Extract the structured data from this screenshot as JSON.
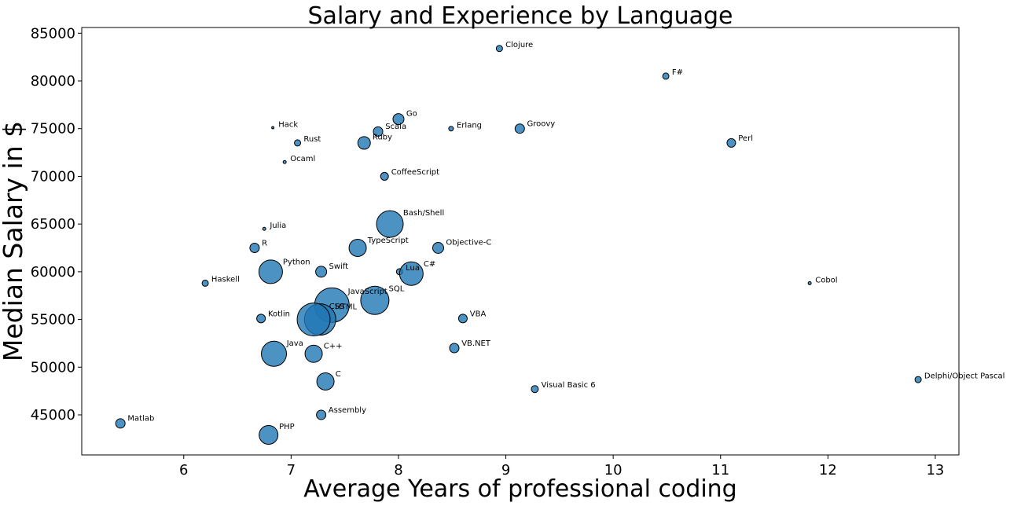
{
  "chart_data": {
    "type": "scatter",
    "title": "Salary and Experience by Language",
    "xlabel": "Average Years of professional coding",
    "ylabel": "Median Salary in  $",
    "xlim": [
      5.05,
      13.22
    ],
    "ylim": [
      40800,
      85600
    ],
    "xticks": [
      6,
      7,
      8,
      9,
      10,
      11,
      12,
      13
    ],
    "yticks": [
      45000,
      50000,
      55000,
      60000,
      65000,
      70000,
      75000,
      80000,
      85000
    ],
    "marker_color": "#1f77b4",
    "edge_color": "#000000",
    "grid": false,
    "legend": "none",
    "points": [
      {
        "label": "Clojure",
        "x": 8.94,
        "y": 83400,
        "size": 4
      },
      {
        "label": "F#",
        "x": 10.49,
        "y": 80500,
        "size": 4
      },
      {
        "label": "Go",
        "x": 8.0,
        "y": 76000,
        "size": 7
      },
      {
        "label": "Hack",
        "x": 6.83,
        "y": 75100,
        "size": 1.5
      },
      {
        "label": "Scala",
        "x": 7.81,
        "y": 74700,
        "size": 6
      },
      {
        "label": "Erlang",
        "x": 8.49,
        "y": 75000,
        "size": 3
      },
      {
        "label": "Groovy",
        "x": 9.13,
        "y": 75000,
        "size": 6
      },
      {
        "label": "Rust",
        "x": 7.06,
        "y": 73500,
        "size": 4
      },
      {
        "label": "Ruby",
        "x": 7.68,
        "y": 73500,
        "size": 8
      },
      {
        "label": "Perl",
        "x": 11.1,
        "y": 73500,
        "size": 5.5
      },
      {
        "label": "Ocaml",
        "x": 6.94,
        "y": 71500,
        "size": 2
      },
      {
        "label": "CoffeeScript",
        "x": 7.87,
        "y": 70000,
        "size": 5
      },
      {
        "label": "Bash/Shell",
        "x": 7.92,
        "y": 65000,
        "size": 17
      },
      {
        "label": "Julia",
        "x": 6.75,
        "y": 64500,
        "size": 2
      },
      {
        "label": "TypeScript",
        "x": 7.62,
        "y": 62500,
        "size": 11
      },
      {
        "label": "Objective-C",
        "x": 8.37,
        "y": 62500,
        "size": 7
      },
      {
        "label": "R",
        "x": 6.66,
        "y": 62500,
        "size": 6
      },
      {
        "label": "Python",
        "x": 6.81,
        "y": 60000,
        "size": 15
      },
      {
        "label": "Swift",
        "x": 7.28,
        "y": 60000,
        "size": 7
      },
      {
        "label": "Lua",
        "x": 8.01,
        "y": 60000,
        "size": 4
      },
      {
        "label": "C#",
        "x": 8.12,
        "y": 59800,
        "size": 15
      },
      {
        "label": "Haskell",
        "x": 6.2,
        "y": 58800,
        "size": 4
      },
      {
        "label": "Cobol",
        "x": 11.83,
        "y": 58800,
        "size": 2
      },
      {
        "label": "JavaScript",
        "x": 7.38,
        "y": 56500,
        "size": 22
      },
      {
        "label": "SQL",
        "x": 7.78,
        "y": 57000,
        "size": 18
      },
      {
        "label": "HTML",
        "x": 7.27,
        "y": 55000,
        "size": 20
      },
      {
        "label": "CSS",
        "x": 7.21,
        "y": 55000,
        "size": 21
      },
      {
        "label": "VBA",
        "x": 8.6,
        "y": 55100,
        "size": 5.5
      },
      {
        "label": "Kotlin",
        "x": 6.72,
        "y": 55100,
        "size": 5.5
      },
      {
        "label": "VB.NET",
        "x": 8.52,
        "y": 52000,
        "size": 6
      },
      {
        "label": "Java",
        "x": 6.84,
        "y": 51400,
        "size": 16
      },
      {
        "label": "C++",
        "x": 7.21,
        "y": 51400,
        "size": 11
      },
      {
        "label": "C",
        "x": 7.32,
        "y": 48500,
        "size": 11
      },
      {
        "label": "Visual Basic 6",
        "x": 9.27,
        "y": 47700,
        "size": 4.5
      },
      {
        "label": "Delphi/Object Pascal",
        "x": 12.84,
        "y": 48700,
        "size": 4
      },
      {
        "label": "Assembly",
        "x": 7.28,
        "y": 45000,
        "size": 6
      },
      {
        "label": "Matlab",
        "x": 5.41,
        "y": 44100,
        "size": 6
      },
      {
        "label": "PHP",
        "x": 6.79,
        "y": 42900,
        "size": 12
      }
    ]
  }
}
